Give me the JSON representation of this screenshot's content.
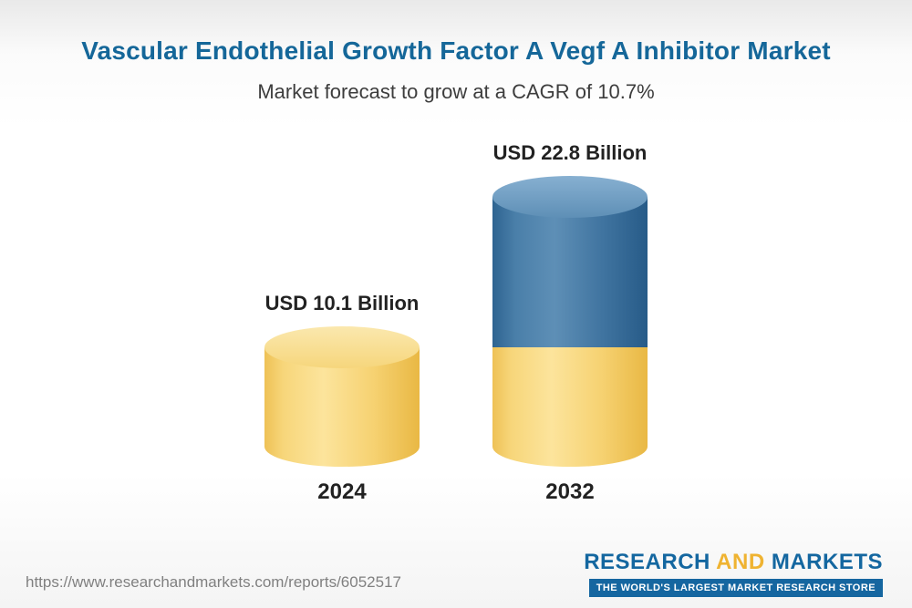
{
  "header": {
    "title": "Vascular Endothelial Growth Factor A Vegf A Inhibitor Market",
    "subtitle": "Market forecast to grow at a CAGR of 10.7%"
  },
  "footer": {
    "url": "https://www.researchandmarkets.com/reports/6052517",
    "logo": {
      "word1": "RESEARCH",
      "word2": "AND",
      "word3": "MARKETS",
      "tagline": "THE WORLD'S LARGEST MARKET RESEARCH STORE"
    }
  },
  "chart_data": {
    "type": "bar",
    "title": "Vascular Endothelial Growth Factor A Vegf A Inhibitor Market",
    "subtitle": "Market forecast to grow at a CAGR of 10.7%",
    "unit": "USD Billion",
    "cagr_percent": 10.7,
    "categories": [
      "2024",
      "2032"
    ],
    "values": [
      10.1,
      22.8
    ],
    "value_labels": [
      "USD 10.1 Billion",
      "USD 22.8 Billion"
    ],
    "legend": "none",
    "axis": {
      "y_axis_hidden": true,
      "gridlines": false
    },
    "bars": [
      {
        "category": "2024",
        "total": 10.1,
        "label": "USD 10.1 Billion",
        "segments": [
          {
            "name": "base",
            "value": 10.1,
            "color": "#F5CE68"
          }
        ]
      },
      {
        "category": "2032",
        "total": 22.8,
        "label": "USD 22.8 Billion",
        "segments": [
          {
            "name": "base",
            "value": 10.1,
            "color": "#F5CE68"
          },
          {
            "name": "growth",
            "value": 12.7,
            "color": "#3A6F9D"
          }
        ]
      }
    ],
    "colors": {
      "base_segment": "#F5CE68",
      "growth_segment": "#3A6F9D",
      "title_text": "#156799",
      "label_text": "#222222"
    },
    "notes": "3D cylinder bars; 2032 bar stacks blue growth segment on top of yellow base equal to the 2024 value"
  }
}
